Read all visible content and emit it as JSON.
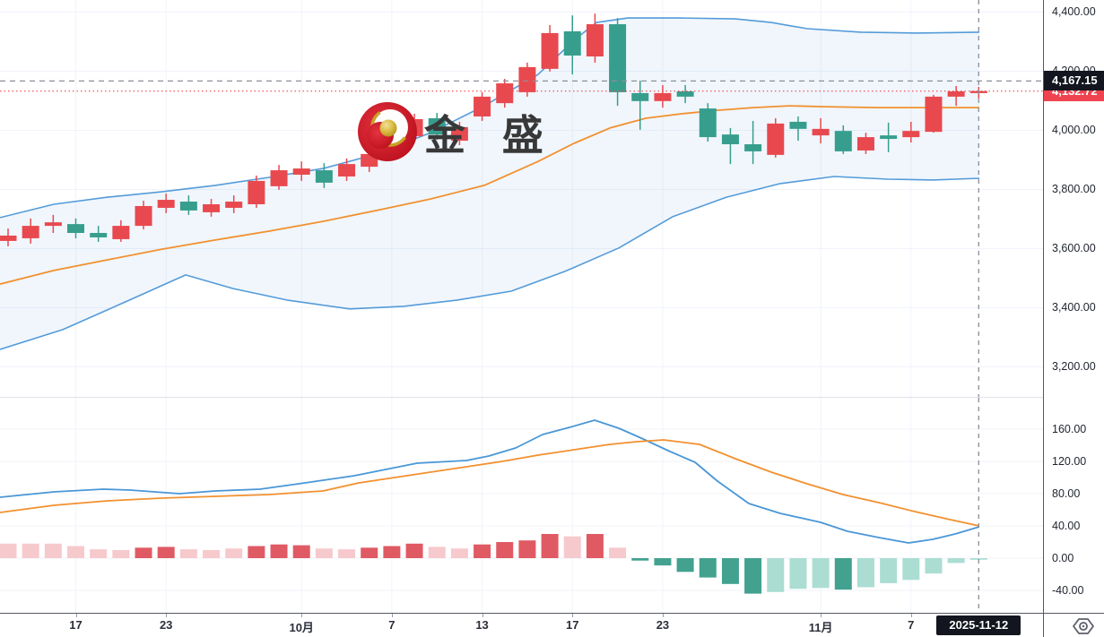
{
  "watermark": {
    "text": "金 盛",
    "logo": "jinsheng-logo-icon"
  },
  "labels": {
    "crosshair_price": "4,167.15",
    "last_price": "4,132.72",
    "crosshair_date": "2025-11-12"
  },
  "icons": {
    "bottom_right": "scale-settings-hex-icon"
  },
  "colors": {
    "up_candle": "#e8494f",
    "down_candle": "#379e8d",
    "bb_band": "#549bd9",
    "bb_mid": "#f2902f",
    "bb_fill": "rgba(84,155,217,0.09)",
    "macd_line": "#4a97d6",
    "signal_line": "#f2902f",
    "hist_up_dark": "#e05a64",
    "hist_up_light": "#f6c9cd",
    "hist_down_dark": "#42a18f",
    "hist_down_light": "#abddd3",
    "grid": "#f0f3fa",
    "crosshair": "#8b8f99",
    "crosshair_label_bg": "#14161f",
    "last_price_line": "#ef4450",
    "axis_text": "#1e222d",
    "axis_border": "#545862"
  },
  "chart_data": {
    "type": "candlestick",
    "title": "",
    "panes": [
      "price-with-bollinger-bands",
      "macd"
    ],
    "legend_position": "none",
    "grid": true,
    "price_axis": {
      "tick_labels": [
        "4,400.00",
        "4,200.00",
        "4,000.00",
        "3,800.00",
        "3,600.00",
        "3,400.00",
        "3,200.00"
      ],
      "tick_values": [
        4400,
        4200,
        4000,
        3800,
        3600,
        3400,
        3200
      ],
      "range": [
        3098,
        4441
      ]
    },
    "macd_axis": {
      "tick_labels": [
        "160.00",
        "120.00",
        "80.00",
        "40.00",
        "0.00",
        "-40.00"
      ],
      "tick_values": [
        160,
        120,
        80,
        40,
        0,
        -40
      ],
      "range": [
        -68,
        199
      ]
    },
    "time_ticks": [
      {
        "label": "17",
        "index": 3,
        "strong": false
      },
      {
        "label": "23",
        "index": 7,
        "strong": false
      },
      {
        "label": "10月",
        "index": 13,
        "strong": true
      },
      {
        "label": "7",
        "index": 17,
        "strong": false
      },
      {
        "label": "13",
        "index": 21,
        "strong": false
      },
      {
        "label": "17",
        "index": 25,
        "strong": false
      },
      {
        "label": "23",
        "index": 29,
        "strong": false
      },
      {
        "label": "11月",
        "index": 36,
        "strong": true
      },
      {
        "label": "7",
        "index": 40,
        "strong": false
      }
    ],
    "candles_ohlc": [
      [
        3626,
        3668,
        3608,
        3644
      ],
      [
        3635,
        3702,
        3617,
        3677
      ],
      [
        3677,
        3714,
        3653,
        3689
      ],
      [
        3683,
        3702,
        3635,
        3653
      ],
      [
        3653,
        3677,
        3623,
        3638
      ],
      [
        3632,
        3696,
        3623,
        3677
      ],
      [
        3677,
        3762,
        3665,
        3744
      ],
      [
        3738,
        3786,
        3720,
        3765
      ],
      [
        3759,
        3780,
        3714,
        3729
      ],
      [
        3723,
        3768,
        3708,
        3750
      ],
      [
        3738,
        3780,
        3720,
        3759
      ],
      [
        3750,
        3847,
        3738,
        3829
      ],
      [
        3811,
        3883,
        3799,
        3865
      ],
      [
        3850,
        3895,
        3829,
        3871
      ],
      [
        3865,
        3889,
        3805,
        3823
      ],
      [
        3844,
        3905,
        3829,
        3886
      ],
      [
        3877,
        3938,
        3859,
        3920
      ],
      [
        3938,
        4002,
        3920,
        3986
      ],
      [
        3980,
        4056,
        3962,
        4038
      ],
      [
        4041,
        4059,
        3968,
        3986
      ],
      [
        3965,
        4029,
        3950,
        4011
      ],
      [
        4047,
        4129,
        4032,
        4114
      ],
      [
        4092,
        4174,
        4077,
        4159
      ],
      [
        4129,
        4229,
        4114,
        4214
      ],
      [
        4208,
        4356,
        4199,
        4329
      ],
      [
        4335,
        4389,
        4189,
        4253
      ],
      [
        4250,
        4395,
        4229,
        4359
      ],
      [
        4359,
        4380,
        4083,
        4129
      ],
      [
        4126,
        4168,
        4002,
        4099
      ],
      [
        4099,
        4153,
        4077,
        4126
      ],
      [
        4132,
        4153,
        4092,
        4114
      ],
      [
        4074,
        4092,
        3962,
        3977
      ],
      [
        3986,
        4008,
        3886,
        3953
      ],
      [
        3953,
        4032,
        3886,
        3929
      ],
      [
        3917,
        4041,
        3908,
        4023
      ],
      [
        4029,
        4047,
        3965,
        4005
      ],
      [
        3983,
        4041,
        3956,
        4005
      ],
      [
        3998,
        4017,
        3920,
        3929
      ],
      [
        3932,
        3992,
        3920,
        3977
      ],
      [
        3983,
        4026,
        3926,
        3971
      ],
      [
        3977,
        4029,
        3959,
        3998
      ],
      [
        3995,
        4120,
        3992,
        4114
      ],
      [
        4114,
        4150,
        4083,
        4132
      ],
      [
        4126,
        4147,
        4108,
        4133
      ]
    ],
    "bollinger": {
      "upper": [
        [
          0,
          3705
        ],
        [
          60,
          3750
        ],
        [
          120,
          3774
        ],
        [
          180,
          3792
        ],
        [
          240,
          3814
        ],
        [
          300,
          3841
        ],
        [
          360,
          3871
        ],
        [
          420,
          3920
        ],
        [
          480,
          3992
        ],
        [
          540,
          4083
        ],
        [
          600,
          4189
        ],
        [
          640,
          4305
        ],
        [
          665,
          4365
        ],
        [
          700,
          4380
        ],
        [
          760,
          4380
        ],
        [
          820,
          4377
        ],
        [
          860,
          4365
        ],
        [
          900,
          4344
        ],
        [
          960,
          4332
        ],
        [
          1020,
          4329
        ],
        [
          1092,
          4332
        ]
      ],
      "middle": [
        [
          0,
          3480
        ],
        [
          60,
          3526
        ],
        [
          120,
          3562
        ],
        [
          180,
          3598
        ],
        [
          240,
          3629
        ],
        [
          300,
          3659
        ],
        [
          360,
          3692
        ],
        [
          420,
          3729
        ],
        [
          480,
          3768
        ],
        [
          540,
          3814
        ],
        [
          600,
          3895
        ],
        [
          640,
          3956
        ],
        [
          680,
          4008
        ],
        [
          720,
          4041
        ],
        [
          760,
          4056
        ],
        [
          800,
          4068
        ],
        [
          840,
          4077
        ],
        [
          880,
          4083
        ],
        [
          920,
          4080
        ],
        [
          980,
          4077
        ],
        [
          1040,
          4077
        ],
        [
          1092,
          4077
        ]
      ],
      "lower": [
        [
          0,
          3259
        ],
        [
          70,
          3326
        ],
        [
          140,
          3420
        ],
        [
          207,
          3511
        ],
        [
          260,
          3465
        ],
        [
          320,
          3426
        ],
        [
          390,
          3396
        ],
        [
          450,
          3405
        ],
        [
          510,
          3426
        ],
        [
          570,
          3456
        ],
        [
          630,
          3523
        ],
        [
          690,
          3602
        ],
        [
          750,
          3708
        ],
        [
          810,
          3774
        ],
        [
          870,
          3820
        ],
        [
          930,
          3844
        ],
        [
          990,
          3835
        ],
        [
          1040,
          3832
        ],
        [
          1092,
          3838
        ]
      ]
    },
    "macd": {
      "macd_line": [
        [
          0,
          75.6
        ],
        [
          60,
          82.2
        ],
        [
          115,
          85.6
        ],
        [
          145,
          84.4
        ],
        [
          200,
          80
        ],
        [
          240,
          83.3
        ],
        [
          290,
          85.6
        ],
        [
          340,
          93.3
        ],
        [
          395,
          102.2
        ],
        [
          430,
          110
        ],
        [
          465,
          117.8
        ],
        [
          520,
          121.1
        ],
        [
          545,
          126.7
        ],
        [
          575,
          136.7
        ],
        [
          605,
          153.3
        ],
        [
          635,
          162.2
        ],
        [
          663,
          171.1
        ],
        [
          690,
          161.1
        ],
        [
          715,
          148.9
        ],
        [
          745,
          133.3
        ],
        [
          775,
          118.9
        ],
        [
          800,
          95.6
        ],
        [
          835,
          67.8
        ],
        [
          870,
          55.6
        ],
        [
          915,
          44.4
        ],
        [
          945,
          33.3
        ],
        [
          980,
          25.6
        ],
        [
          1013,
          18.9
        ],
        [
          1040,
          23.3
        ],
        [
          1065,
          30
        ],
        [
          1092,
          38.9
        ]
      ],
      "signal_line": [
        [
          0,
          56.7
        ],
        [
          60,
          65.6
        ],
        [
          120,
          71.1
        ],
        [
          180,
          74.4
        ],
        [
          240,
          76.7
        ],
        [
          300,
          78.9
        ],
        [
          360,
          83.3
        ],
        [
          400,
          93.3
        ],
        [
          440,
          100
        ],
        [
          480,
          106.7
        ],
        [
          520,
          113.3
        ],
        [
          560,
          120
        ],
        [
          600,
          127.8
        ],
        [
          640,
          134.4
        ],
        [
          680,
          141.1
        ],
        [
          710,
          144.4
        ],
        [
          740,
          146.7
        ],
        [
          780,
          141.1
        ],
        [
          820,
          123.3
        ],
        [
          860,
          106.7
        ],
        [
          900,
          92.2
        ],
        [
          940,
          78.9
        ],
        [
          980,
          68.9
        ],
        [
          1020,
          57.8
        ],
        [
          1055,
          48.9
        ],
        [
          1092,
          40
        ]
      ],
      "histogram": [
        18,
        18,
        18,
        15,
        11,
        10,
        13,
        14,
        11,
        10,
        12,
        15,
        17,
        16,
        12,
        11,
        13,
        15,
        18,
        14,
        12,
        17,
        20,
        22,
        30,
        27,
        30,
        13,
        -3,
        -9,
        -17,
        -24,
        -32,
        -44,
        -42,
        -38,
        -37,
        -39,
        -36,
        -31,
        -27,
        -19,
        -6,
        -2
      ],
      "histogram_shades": [
        "light",
        "light",
        "light",
        "light",
        "light",
        "light",
        "dark",
        "dark",
        "light",
        "light",
        "light",
        "dark",
        "dark",
        "dark",
        "light",
        "light",
        "dark",
        "dark",
        "dark",
        "light",
        "light",
        "dark",
        "dark",
        "dark",
        "dark",
        "light",
        "dark",
        "light",
        "dark",
        "dark",
        "dark",
        "dark",
        "dark",
        "dark",
        "light",
        "light",
        "light",
        "dark",
        "light",
        "light",
        "light",
        "light",
        "light",
        "light"
      ]
    },
    "crosshair": {
      "candle_index": 43,
      "price": 4167.15,
      "date": "2025-11-12"
    },
    "last_price": 4132.72
  }
}
